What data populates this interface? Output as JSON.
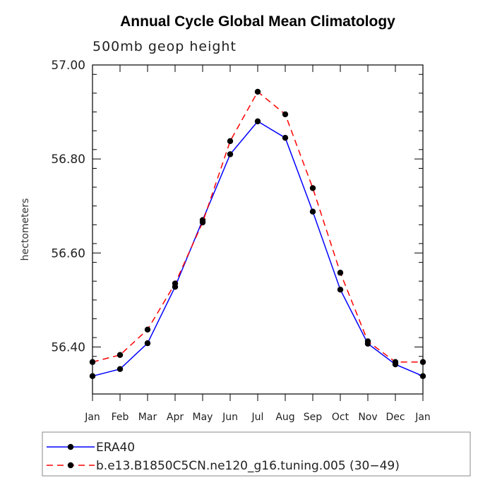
{
  "chart_data": {
    "type": "line",
    "title": "Annual Cycle Global Mean Climatology",
    "subtitle": "500mb geop height",
    "xlabel": "",
    "ylabel": "hectometers",
    "ylim": [
      56.3,
      57.0
    ],
    "yticks": [
      56.4,
      56.6,
      56.8,
      57.0
    ],
    "ytick_labels": [
      "56.40",
      "56.60",
      "56.80",
      "57.00"
    ],
    "yminor_step": 0.04,
    "categories": [
      "Jan",
      "Feb",
      "Mar",
      "Apr",
      "May",
      "Jun",
      "Jul",
      "Aug",
      "Sep",
      "Oct",
      "Nov",
      "Dec",
      "Jan"
    ],
    "series": [
      {
        "name": "ERA40",
        "color": "#0000ff",
        "dash": "solid",
        "values": [
          56.338,
          56.353,
          56.408,
          56.528,
          56.67,
          56.81,
          56.88,
          56.845,
          56.688,
          56.522,
          56.407,
          56.363,
          56.338
        ]
      },
      {
        "name": "b.e13.B1850C5CN.ne120_g16.tuning.005 (30−49)",
        "color": "#ff0000",
        "dash": "dashed",
        "values": [
          56.368,
          56.383,
          56.437,
          56.535,
          56.665,
          56.838,
          56.943,
          56.895,
          56.738,
          56.558,
          56.412,
          56.368,
          56.368
        ]
      }
    ],
    "legend_position": "bottom"
  }
}
